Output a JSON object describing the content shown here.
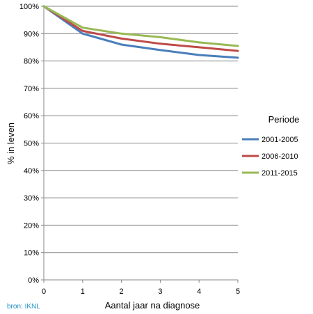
{
  "chart_data": {
    "type": "line",
    "xlabel": "Aantal jaar na diagnose",
    "ylabel": "% in leven",
    "x": [
      0,
      1,
      2,
      3,
      4,
      5
    ],
    "xlim": [
      0,
      5
    ],
    "ylim": [
      0,
      100
    ],
    "x_ticks": [
      "0",
      "1",
      "2",
      "3",
      "4",
      "5"
    ],
    "y_ticks": [
      "0%",
      "10%",
      "20%",
      "30%",
      "40%",
      "50%",
      "60%",
      "70%",
      "80%",
      "90%",
      "100%"
    ],
    "y_tick_values": [
      0,
      10,
      20,
      30,
      40,
      50,
      60,
      70,
      80,
      90,
      100
    ],
    "grid": "horizontal",
    "legend_title": "Periode",
    "legend_position": "right",
    "series": [
      {
        "name": "2001-2005",
        "color": "#4a7ebb",
        "values": [
          100,
          90,
          86,
          84,
          82.2,
          81.2
        ]
      },
      {
        "name": "2006-2010",
        "color": "#be4b48",
        "values": [
          100,
          91,
          88.2,
          86.3,
          85,
          83.7
        ]
      },
      {
        "name": "2011-2015",
        "color": "#98b954",
        "values": [
          100,
          92.2,
          90,
          88.7,
          86.8,
          85.5
        ]
      }
    ]
  },
  "source": "bron: IKNL"
}
